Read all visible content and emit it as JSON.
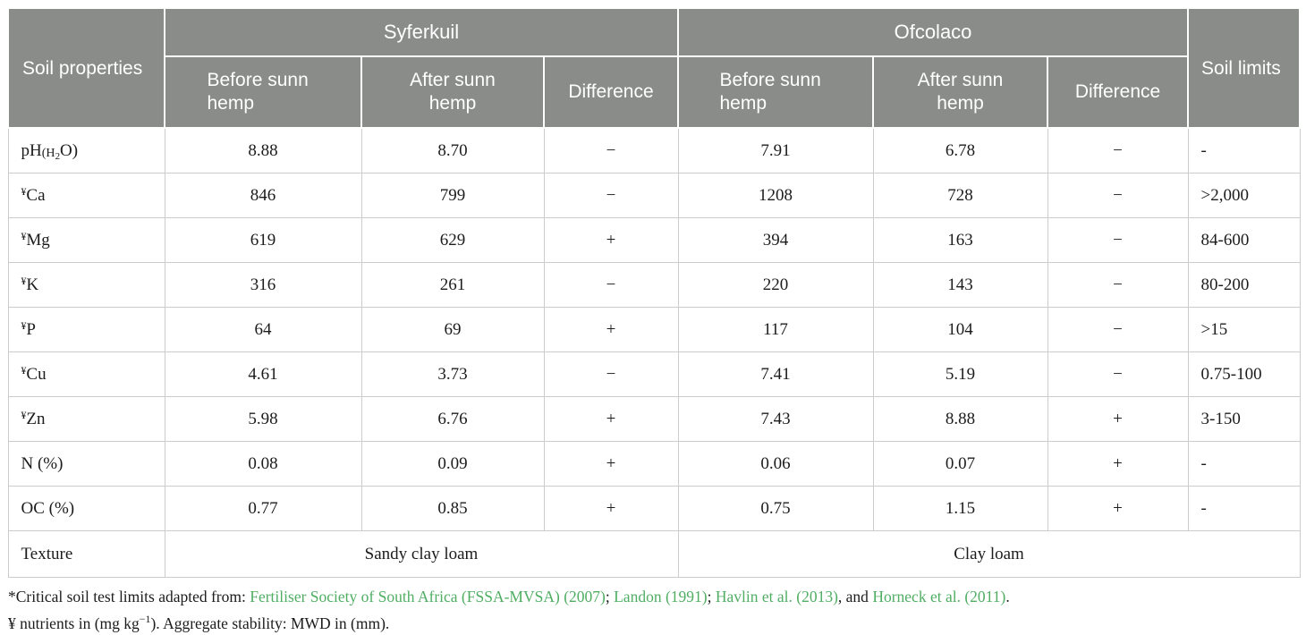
{
  "colors": {
    "header_bg": "#8a8c8a",
    "header_text": "#ffffff",
    "grid_line": "#cbcdcc",
    "body_text": "#1c1c1c",
    "link_green": "#4fae63"
  },
  "table": {
    "header": {
      "soil_properties": "Soil properties",
      "group_1": "Syferkuil",
      "group_2": "Ofcolaco",
      "sub": [
        "Before sunn hemp",
        "After sunn hemp",
        "Difference"
      ],
      "soil_limits": "Soil limits"
    },
    "ph_parts": {
      "base": "pH",
      "sub": "(H",
      "subsub": "2",
      "rest": "O)"
    },
    "rows": [
      {
        "label": {
          "type": "ph"
        },
        "values": [
          "8.88",
          "8.70",
          "−",
          "7.91",
          "6.78",
          "−",
          "-"
        ]
      },
      {
        "label": {
          "sup": "¥",
          "text": "Ca"
        },
        "values": [
          "846",
          "799",
          "−",
          "1208",
          "728",
          "−",
          ">2,000"
        ]
      },
      {
        "label": {
          "sup": "¥",
          "text": "Mg"
        },
        "values": [
          "619",
          "629",
          "+",
          "394",
          "163",
          "−",
          "84-600"
        ]
      },
      {
        "label": {
          "sup": "¥",
          "text": "K"
        },
        "values": [
          "316",
          "261",
          "−",
          "220",
          "143",
          "−",
          "80-200"
        ]
      },
      {
        "label": {
          "sup": "¥",
          "text": "P"
        },
        "values": [
          "64",
          "69",
          "+",
          "117",
          "104",
          "−",
          ">15"
        ]
      },
      {
        "label": {
          "sup": "¥",
          "text": "Cu"
        },
        "values": [
          "4.61",
          "3.73",
          "−",
          "7.41",
          "5.19",
          "−",
          "0.75-100"
        ]
      },
      {
        "label": {
          "sup": "¥",
          "text": "Zn"
        },
        "values": [
          "5.98",
          "6.76",
          "+",
          "7.43",
          "8.88",
          "+",
          "3-150"
        ]
      },
      {
        "label": {
          "text": "N (%)"
        },
        "values": [
          "0.08",
          "0.09",
          "+",
          "0.06",
          "0.07",
          "+",
          "-"
        ]
      },
      {
        "label": {
          "text": "OC (%)"
        },
        "values": [
          "0.77",
          "0.85",
          "+",
          "0.75",
          "1.15",
          "+",
          "-"
        ]
      }
    ],
    "texture": {
      "label": "Texture",
      "syferkuil": "Sandy clay loam",
      "ofcolaco": "Clay loam"
    }
  },
  "footnotes": {
    "line1": [
      {
        "t": "*Critical soil test limits adapted from: ",
        "link": false
      },
      {
        "t": "Fertiliser Society of South Africa (FSSA-MVSA) (2007)",
        "link": true
      },
      {
        "t": "; ",
        "link": false
      },
      {
        "t": "Landon (1991)",
        "link": true
      },
      {
        "t": "; ",
        "link": false
      },
      {
        "t": "Havlin et al. (2013)",
        "link": true
      },
      {
        "t": ", and ",
        "link": false
      },
      {
        "t": "Horneck et al. (2011)",
        "link": true
      },
      {
        "t": ".",
        "link": false
      }
    ],
    "line2": {
      "pre": "¥ nutrients in (mg kg",
      "sup": "−1",
      "post": "). Aggregate stability: MWD in (mm)."
    }
  }
}
